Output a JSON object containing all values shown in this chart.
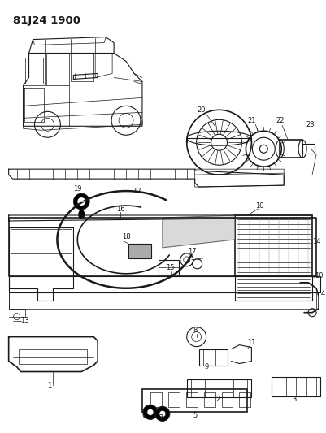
{
  "title": "81J24 1900",
  "background_color": "#ffffff",
  "fig_width": 4.01,
  "fig_height": 5.33,
  "dpi": 100,
  "line_color": "#1a1a1a",
  "label_fontsize": 6.0,
  "title_fontsize": 9.5
}
